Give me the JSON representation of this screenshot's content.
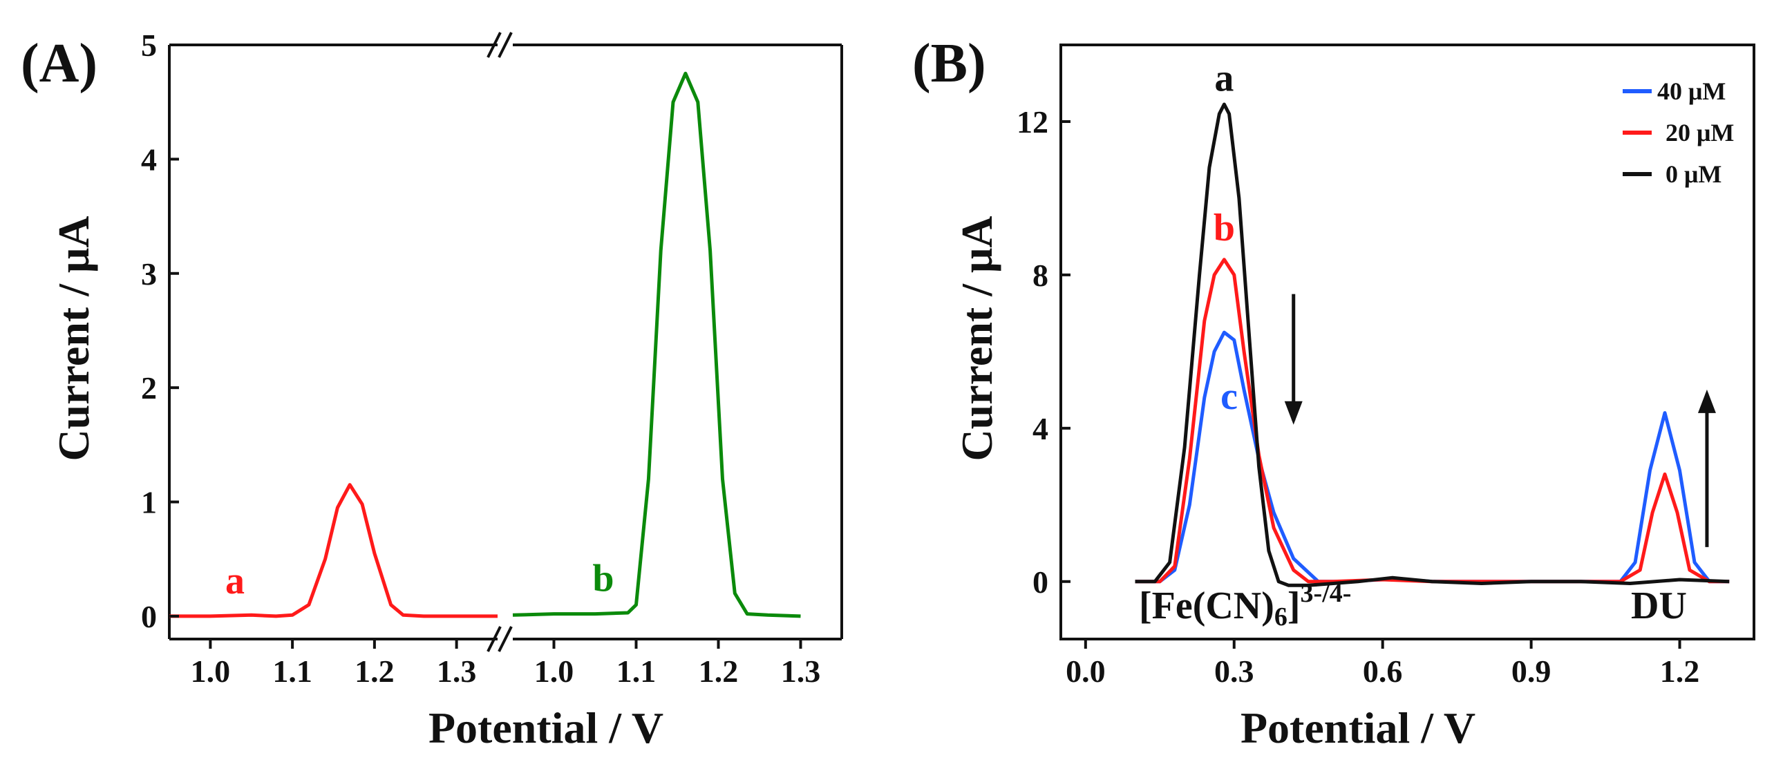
{
  "figure": {
    "background": "#ffffff"
  },
  "chart_data": [
    {
      "panel_label": "(A)",
      "type": "line",
      "title": "",
      "xlabel": "Potential / V",
      "ylabel": "Current / μA",
      "axis_break": true,
      "segments": [
        {
          "xlim": [
            0.95,
            1.35
          ],
          "ticks": [
            1.0,
            1.1,
            1.2,
            1.3
          ],
          "tick_labels": [
            "1.0",
            "1.1",
            "1.2",
            "1.3"
          ]
        },
        {
          "xlim": [
            0.95,
            1.35
          ],
          "ticks": [
            1.0,
            1.1,
            1.2,
            1.3
          ],
          "tick_labels": [
            "1.0",
            "1.1",
            "1.2",
            "1.3"
          ]
        }
      ],
      "ylim": [
        -0.2,
        5.0
      ],
      "yticks": [
        0,
        1,
        2,
        3,
        4,
        5
      ],
      "ytick_labels": [
        "0",
        "1",
        "2",
        "3",
        "4",
        "5"
      ],
      "series": [
        {
          "name": "a",
          "segment": 0,
          "color": "#ff1a1a",
          "label_at": [
            1.03,
            0.2
          ],
          "x": [
            0.95,
            1.0,
            1.05,
            1.08,
            1.1,
            1.12,
            1.14,
            1.155,
            1.17,
            1.185,
            1.2,
            1.22,
            1.235,
            1.26,
            1.3,
            1.35
          ],
          "y": [
            0.0,
            0.0,
            0.01,
            0.0,
            0.01,
            0.1,
            0.5,
            0.95,
            1.15,
            0.98,
            0.55,
            0.1,
            0.01,
            0.0,
            0.0,
            0.0
          ]
        },
        {
          "name": "b",
          "segment": 1,
          "color": "#0b8a0b",
          "label_at": [
            1.06,
            0.22
          ],
          "x": [
            0.95,
            1.0,
            1.05,
            1.09,
            1.1,
            1.115,
            1.13,
            1.145,
            1.16,
            1.175,
            1.19,
            1.205,
            1.22,
            1.235,
            1.26,
            1.3
          ],
          "y": [
            0.01,
            0.02,
            0.02,
            0.03,
            0.1,
            1.2,
            3.2,
            4.5,
            4.75,
            4.5,
            3.2,
            1.2,
            0.2,
            0.02,
            0.01,
            0.0
          ]
        }
      ]
    },
    {
      "panel_label": "(B)",
      "type": "line",
      "title": "",
      "xlabel": "Potential / V",
      "ylabel": "Current / μA",
      "xlim": [
        -0.05,
        1.35
      ],
      "ylim": [
        -1.5,
        14.0
      ],
      "xticks": [
        0.0,
        0.3,
        0.6,
        0.9,
        1.2
      ],
      "xtick_labels": [
        "0.0",
        "0.3",
        "0.6",
        "0.9",
        "1.2"
      ],
      "yticks": [
        0,
        4,
        8,
        12
      ],
      "ytick_labels": [
        "0",
        "4",
        "8",
        "12"
      ],
      "legend": {
        "placement": "top-right",
        "entries": [
          "40 μM",
          "20 μM",
          "0 μM"
        ]
      },
      "series": [
        {
          "name": "40 μM",
          "curve_label": "c",
          "color": "#1f5cff",
          "label_at": [
            0.29,
            4.5
          ],
          "x": [
            0.1,
            0.15,
            0.18,
            0.21,
            0.24,
            0.26,
            0.28,
            0.3,
            0.32,
            0.35,
            0.38,
            0.42,
            0.47,
            0.52,
            0.6,
            0.65,
            0.7,
            0.8,
            0.9,
            1.0,
            1.08,
            1.11,
            1.14,
            1.17,
            1.2,
            1.23,
            1.26,
            1.3
          ],
          "y": [
            0.0,
            0.0,
            0.3,
            2.0,
            4.8,
            6.0,
            6.5,
            6.3,
            5.0,
            3.2,
            1.8,
            0.6,
            0.0,
            0.0,
            0.05,
            0.05,
            0.0,
            0.0,
            0.0,
            0.0,
            0.0,
            0.5,
            2.9,
            4.4,
            2.9,
            0.5,
            0.0,
            0.0
          ]
        },
        {
          "name": "20 μM",
          "curve_label": "b",
          "color": "#ff1a1a",
          "label_at": [
            0.28,
            8.9
          ],
          "x": [
            0.1,
            0.15,
            0.18,
            0.21,
            0.24,
            0.26,
            0.28,
            0.3,
            0.32,
            0.35,
            0.38,
            0.42,
            0.45,
            0.5,
            0.6,
            0.7,
            0.8,
            0.9,
            1.0,
            1.08,
            1.12,
            1.145,
            1.17,
            1.195,
            1.22,
            1.26,
            1.3
          ],
          "y": [
            0.0,
            0.0,
            0.4,
            3.2,
            6.8,
            8.0,
            8.4,
            8.0,
            6.0,
            3.3,
            1.4,
            0.3,
            0.0,
            0.0,
            0.05,
            0.0,
            0.0,
            0.0,
            0.0,
            0.0,
            0.3,
            1.8,
            2.8,
            1.8,
            0.3,
            0.0,
            0.0
          ]
        },
        {
          "name": "0 μM",
          "curve_label": "a",
          "color": "#111111",
          "label_at": [
            0.28,
            12.8
          ],
          "x": [
            0.1,
            0.14,
            0.17,
            0.2,
            0.23,
            0.25,
            0.27,
            0.28,
            0.29,
            0.31,
            0.33,
            0.35,
            0.37,
            0.39,
            0.41,
            0.45,
            0.55,
            0.62,
            0.7,
            0.8,
            0.9,
            1.0,
            1.1,
            1.2,
            1.3
          ],
          "y": [
            0.0,
            0.0,
            0.5,
            3.5,
            8.0,
            10.8,
            12.2,
            12.45,
            12.2,
            10.0,
            6.5,
            3.0,
            0.8,
            0.0,
            -0.1,
            -0.1,
            0.0,
            0.1,
            0.0,
            -0.05,
            0.0,
            0.0,
            -0.05,
            0.05,
            0.0
          ]
        }
      ],
      "annotations": {
        "left_peak_label_base": "[Fe(CN)",
        "left_peak_label_sub": "6",
        "left_peak_label_close": "]",
        "left_peak_label_sup": "3-/4-",
        "right_peak_label": "DU",
        "arrows": [
          {
            "direction": "down",
            "x": 0.42,
            "from_y": 7.5,
            "to_y": 4.2
          },
          {
            "direction": "up",
            "x": 1.255,
            "from_y": 0.9,
            "to_y": 4.9
          }
        ]
      }
    }
  ]
}
